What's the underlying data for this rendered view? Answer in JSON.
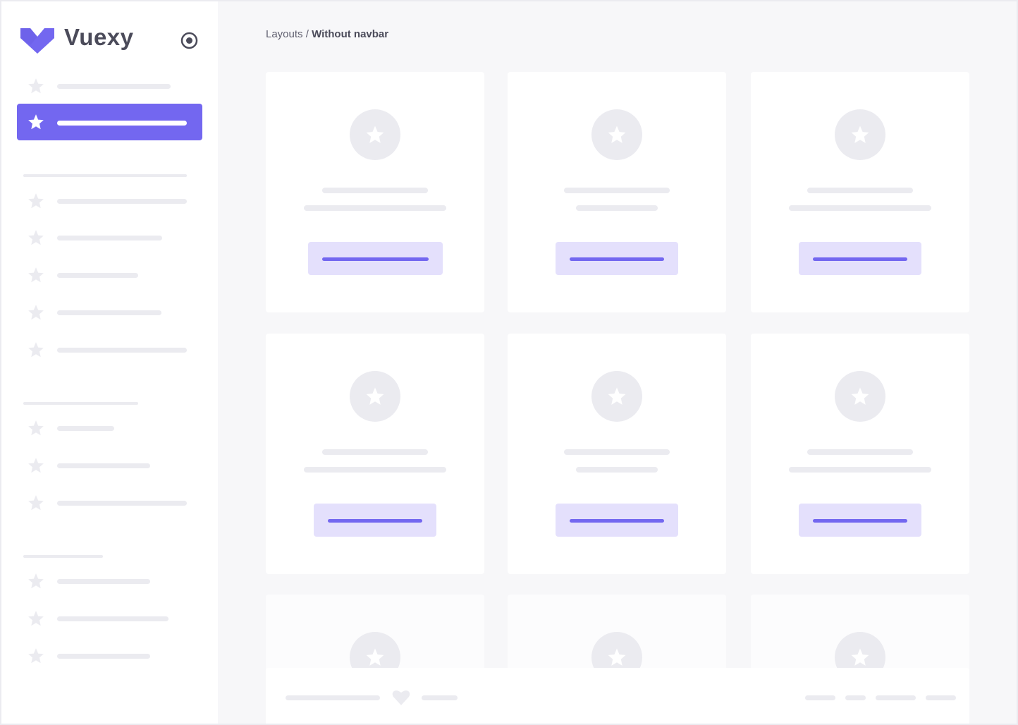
{
  "brand": {
    "name": "Vuexy",
    "color": "#7367f0"
  },
  "breadcrumb": {
    "parent": "Layouts",
    "separator": " / ",
    "current": "Without navbar"
  },
  "icons": {
    "logo": "vuexy-logo",
    "collapse": "radio-circle-icon",
    "nav": "star-icon",
    "footer": "heart-icon"
  }
}
